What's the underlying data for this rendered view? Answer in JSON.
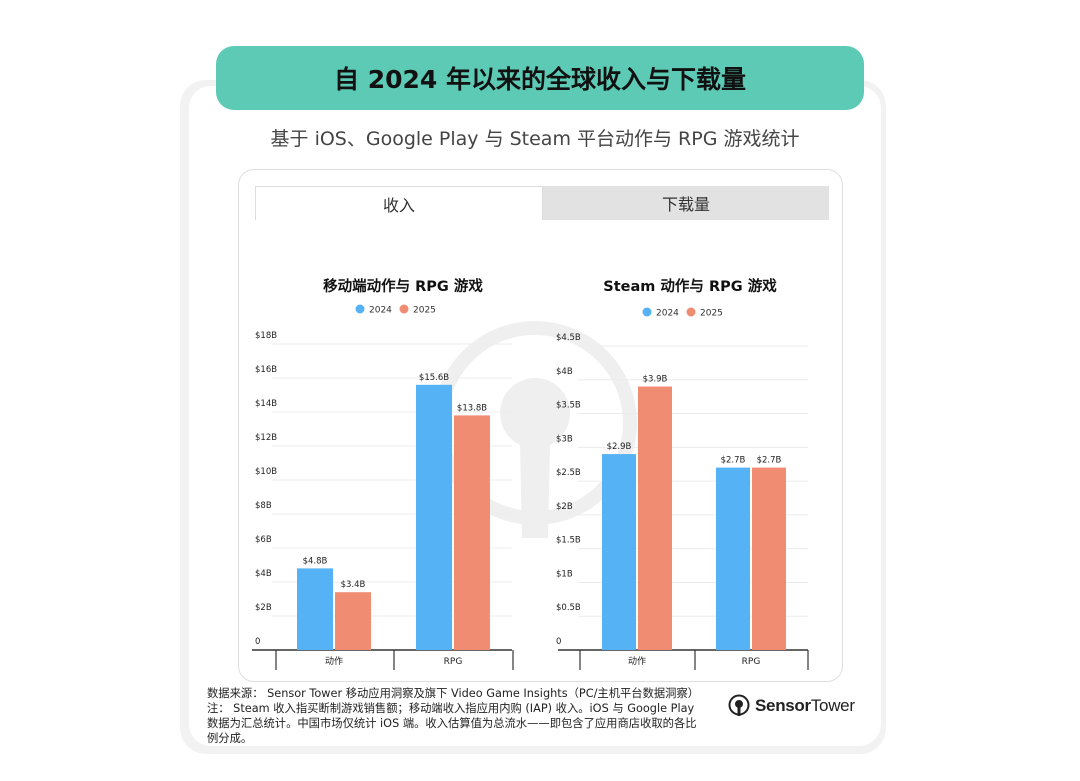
{
  "title": "自 2024 年以来的全球收入与下载量",
  "subtitle": "基于 iOS、Google Play 与 Steam 平台动作与 RPG 游戏统计",
  "tabs": [
    {
      "label": "收入",
      "active": true
    },
    {
      "label": "下载量",
      "active": false
    }
  ],
  "colors": {
    "accent": "#5ccab5",
    "series_2024": "#55b2f5",
    "series_2025": "#ef8c72"
  },
  "chart_data": [
    {
      "type": "bar",
      "title": "移动端动作与 RPG 游戏",
      "categories": [
        "动作",
        "RPG"
      ],
      "series": [
        {
          "name": "2024",
          "values": [
            4.8,
            15.6
          ],
          "labels": [
            "$4.8B",
            "$15.6B"
          ]
        },
        {
          "name": "2025",
          "values": [
            3.4,
            13.8
          ],
          "labels": [
            "$3.4B",
            "$13.8B"
          ]
        }
      ],
      "ylim": [
        0,
        18
      ],
      "yticks": [
        0,
        2,
        4,
        6,
        8,
        10,
        12,
        14,
        16,
        18
      ],
      "ytick_labels": [
        "0",
        "$2B",
        "$4B",
        "$6B",
        "$8B",
        "$10B",
        "$12B",
        "$14B",
        "$16B",
        "$18B"
      ],
      "legend": "top-center",
      "grid": true
    },
    {
      "type": "bar",
      "title": "Steam 动作与 RPG 游戏",
      "categories": [
        "动作",
        "RPG"
      ],
      "series": [
        {
          "name": "2024",
          "values": [
            2.9,
            2.7
          ],
          "labels": [
            "$2.9B",
            "$2.7B"
          ]
        },
        {
          "name": "2025",
          "values": [
            3.9,
            2.7
          ],
          "labels": [
            "$3.9B",
            "$2.7B"
          ]
        }
      ],
      "ylim": [
        0,
        4.5
      ],
      "yticks": [
        0,
        0.5,
        1,
        1.5,
        2,
        2.5,
        3,
        3.5,
        4,
        4.5
      ],
      "ytick_labels": [
        "0",
        "$0.5B",
        "$1B",
        "$1.5B",
        "$2B",
        "$2.5B",
        "$3B",
        "$3.5B",
        "$4B",
        "$4.5B"
      ],
      "legend": "top-center",
      "grid": true
    }
  ],
  "footer": {
    "line1": "数据来源： Sensor Tower 移动应用洞察及旗下 Video Game Insights（PC/主机平台数据洞察）",
    "line2": "注： Steam 收入指买断制游戏销售额；移动端收入指应用内购 (IAP) 收入。iOS 与 Google Play 数据为汇总统计。中国市场仅统计 iOS 端。收入估算值为总流水——即包含了应用商店收取的各比例分成。"
  },
  "logo": {
    "bold": "Sensor",
    "light": "Tower",
    "icon": "sensor-tower-logo-icon"
  }
}
